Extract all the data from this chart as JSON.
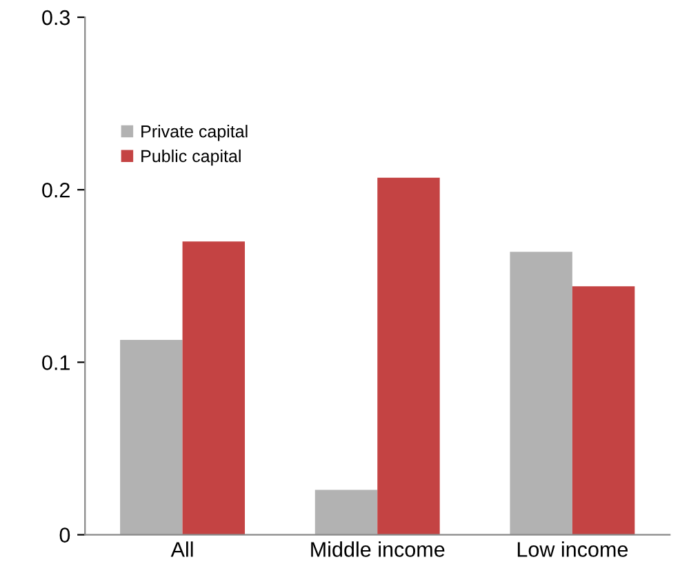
{
  "chart_data": {
    "type": "bar",
    "categories": [
      "All",
      "Middle income",
      "Low income"
    ],
    "series": [
      {
        "name": "Private capital",
        "color": "#b2b2b2",
        "values": [
          0.113,
          0.026,
          0.164
        ]
      },
      {
        "name": "Public capital",
        "color": "#c44343",
        "values": [
          0.17,
          0.207,
          0.144
        ]
      }
    ],
    "ylim": [
      0,
      0.3
    ],
    "yticks": [
      {
        "value": 0,
        "label": "0"
      },
      0.1,
      0.2,
      0.3
    ],
    "grid": false,
    "legend": "top left"
  }
}
